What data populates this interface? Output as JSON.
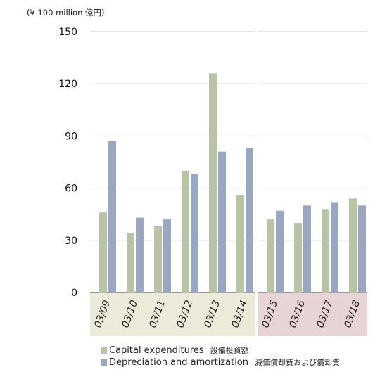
{
  "chart_data": {
    "type": "bar",
    "unit_label": "(¥ 100 million 億円)",
    "categories": [
      "03/09",
      "03/10",
      "03/11",
      "03/12",
      "03/13",
      "03/14",
      "03/15",
      "03/16",
      "03/17",
      "03/18"
    ],
    "series": [
      {
        "name": "Capital expenditures",
        "name_ja": "設備投資額",
        "color": "#b7c4a6",
        "values": [
          46,
          34,
          38,
          70,
          126,
          56,
          42,
          40,
          48,
          54
        ]
      },
      {
        "name": "Depreciation and amortization",
        "name_ja": "減価償却費および償却費",
        "color": "#9aa7c2",
        "values": [
          87,
          43,
          42,
          68,
          81,
          83,
          47,
          50,
          52,
          50
        ]
      }
    ],
    "yticks": [
      0,
      30,
      60,
      90,
      120,
      150
    ],
    "ylim": [
      0,
      150
    ],
    "grid": true,
    "groups": [
      {
        "from": 0,
        "to": 5,
        "band_color": "#ecead9"
      },
      {
        "from": 6,
        "to": 9,
        "band_color": "#e7d4d6"
      }
    ],
    "legend_position": "bottom"
  }
}
